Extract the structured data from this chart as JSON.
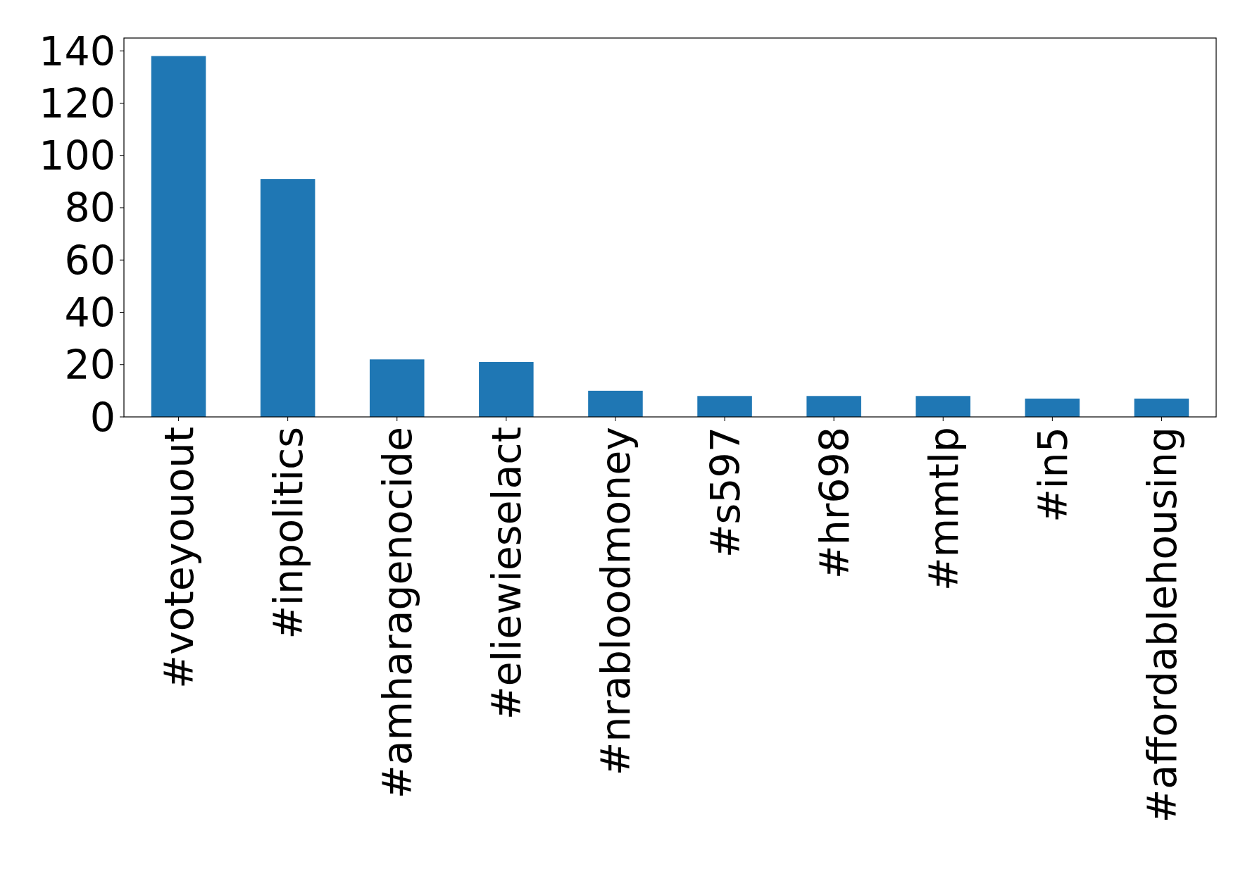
{
  "chart_data": {
    "type": "bar",
    "categories": [
      "#voteyouout",
      "#inpolitics",
      "#amharagenocide",
      "#eliewieselact",
      "#nrabloodmoney",
      "#s597",
      "#hr698",
      "#mmtlp",
      "#in5",
      "#affordablehousing"
    ],
    "values": [
      138,
      91,
      22,
      21,
      10,
      8,
      8,
      8,
      7,
      7
    ],
    "color": "#1f77b4",
    "ylim": [
      0,
      144.9
    ],
    "yticks": [
      0,
      20,
      40,
      60,
      80,
      100,
      120,
      140
    ]
  }
}
